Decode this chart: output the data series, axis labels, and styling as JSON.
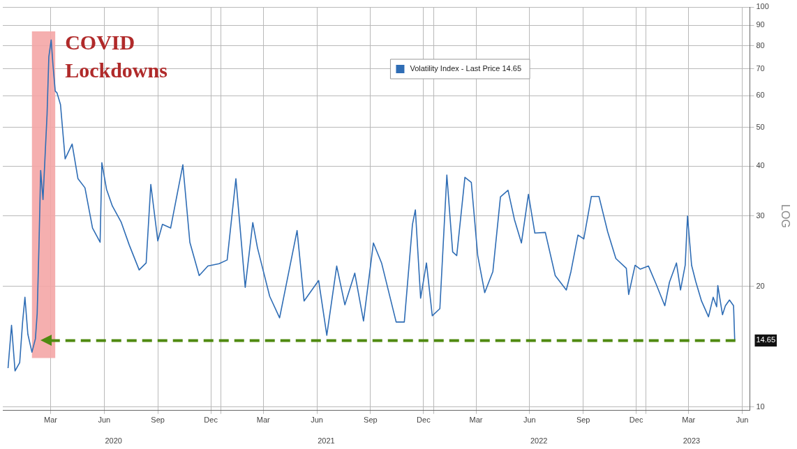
{
  "chart_data": {
    "type": "line",
    "legend": "top",
    "grid": true,
    "log": "y",
    "marker": "none",
    "line_style": "solid",
    "x": [
      "2020-01-02",
      "2020-01-08",
      "2020-01-14",
      "2020-01-22",
      "2020-01-27",
      "2020-01-31",
      "2020-02-05",
      "2020-02-12",
      "2020-02-18",
      "2020-02-21",
      "2020-02-24",
      "2020-02-27",
      "2020-03-02",
      "2020-03-09",
      "2020-03-12",
      "2020-03-16",
      "2020-03-19",
      "2020-03-23",
      "2020-03-26",
      "2020-04-01",
      "2020-04-09",
      "2020-04-21",
      "2020-05-01",
      "2020-05-13",
      "2020-05-26",
      "2020-06-08",
      "2020-06-11",
      "2020-06-19",
      "2020-06-29",
      "2020-07-14",
      "2020-07-28",
      "2020-08-14",
      "2020-08-26",
      "2020-09-03",
      "2020-09-15",
      "2020-09-23",
      "2020-10-07",
      "2020-10-28",
      "2020-11-09",
      "2020-11-25",
      "2020-12-10",
      "2020-12-29",
      "2021-01-12",
      "2021-01-27",
      "2021-02-12",
      "2021-02-25",
      "2021-03-05",
      "2021-03-26",
      "2021-04-12",
      "2021-05-12",
      "2021-05-24",
      "2021-06-18",
      "2021-07-02",
      "2021-07-19",
      "2021-08-02",
      "2021-08-19",
      "2021-09-03",
      "2021-09-20",
      "2021-10-04",
      "2021-10-29",
      "2021-11-12",
      "2021-11-26",
      "2021-12-01",
      "2021-12-10",
      "2021-12-20",
      "2021-12-30",
      "2022-01-12",
      "2022-01-24",
      "2022-02-03",
      "2022-02-10",
      "2022-02-24",
      "2022-03-07",
      "2022-03-18",
      "2022-03-30",
      "2022-04-13",
      "2022-04-26",
      "2022-05-09",
      "2022-05-20",
      "2022-06-01",
      "2022-06-13",
      "2022-06-24",
      "2022-07-12",
      "2022-07-29",
      "2022-08-17",
      "2022-08-25",
      "2022-09-06",
      "2022-09-16",
      "2022-09-29",
      "2022-10-12",
      "2022-10-27",
      "2022-11-10",
      "2022-11-28",
      "2022-12-02",
      "2022-12-13",
      "2022-12-22",
      "2023-01-05",
      "2023-01-18",
      "2023-02-02",
      "2023-02-10",
      "2023-02-22",
      "2023-03-01",
      "2023-03-09",
      "2023-03-13",
      "2023-03-20",
      "2023-03-27",
      "2023-04-06",
      "2023-04-18",
      "2023-04-26",
      "2023-05-02",
      "2023-05-04",
      "2023-05-12",
      "2023-05-17",
      "2023-05-24",
      "2023-05-31",
      "2023-06-02"
    ],
    "series": [
      {
        "name": "Volatility Index - Last Price 14.65",
        "color": "#2f6db5",
        "values": [
          12.5,
          16,
          12.3,
          12.9,
          16.3,
          18.8,
          15.2,
          13.7,
          14.8,
          17.1,
          25,
          39,
          33,
          54,
          75,
          82.7,
          72,
          61.6,
          61,
          57,
          41.7,
          45.4,
          37.2,
          35.3,
          28,
          25.8,
          40.8,
          35,
          31.8,
          29,
          25.4,
          22,
          22.9,
          36,
          26,
          28.6,
          28,
          40.3,
          25.8,
          21.3,
          22.5,
          22.8,
          23.3,
          37.2,
          19.9,
          28.9,
          25,
          18.9,
          16.7,
          27.6,
          18.4,
          20.7,
          15.1,
          22.5,
          18,
          21.6,
          16.4,
          25.7,
          22.9,
          16.3,
          16.3,
          28.6,
          31.1,
          18.7,
          22.9,
          16.9,
          17.6,
          38,
          24.4,
          23.9,
          37.5,
          36.4,
          23.9,
          19.3,
          21.8,
          33.5,
          34.8,
          29.4,
          25.7,
          34,
          27.2,
          27.3,
          21.3,
          19.6,
          21.8,
          26.9,
          26.3,
          33.6,
          33.6,
          27.4,
          23.5,
          22.2,
          19.1,
          22.6,
          22.1,
          22.5,
          20.3,
          17.9,
          20.5,
          22.9,
          19.6,
          22.6,
          30,
          22.6,
          20.6,
          18.4,
          16.8,
          18.8,
          17.8,
          20.1,
          17,
          17.9,
          18.5,
          17.9,
          14.65
        ]
      }
    ],
    "xlim": [
      "2019-12-24",
      "2023-06-28"
    ],
    "xticks": [
      {
        "value": "2020-03-15",
        "label": "Mar"
      },
      {
        "value": "2020-06-15",
        "label": "Jun"
      },
      {
        "value": "2020-09-15",
        "label": "Sep"
      },
      {
        "value": "2020-12-15",
        "label": "Dec"
      },
      {
        "value": "2021-01-01",
        "label": null
      },
      {
        "value": "2021-03-15",
        "label": "Mar"
      },
      {
        "value": "2021-06-15",
        "label": "Jun"
      },
      {
        "value": "2021-09-15",
        "label": "Sep"
      },
      {
        "value": "2021-12-15",
        "label": "Dec"
      },
      {
        "value": "2022-01-01",
        "label": null
      },
      {
        "value": "2022-03-15",
        "label": "Mar"
      },
      {
        "value": "2022-06-15",
        "label": "Jun"
      },
      {
        "value": "2022-09-15",
        "label": "Sep"
      },
      {
        "value": "2022-12-15",
        "label": "Dec"
      },
      {
        "value": "2023-01-01",
        "label": null
      },
      {
        "value": "2023-03-15",
        "label": "Mar"
      },
      {
        "value": "2023-06-15",
        "label": "Jun"
      }
    ],
    "x2lim": [
      "2019-12-24",
      "2023-06-28"
    ],
    "x2ticks": [
      {
        "value": "2020-07-01",
        "label": "2020"
      },
      {
        "value": "2021-07-01",
        "label": "2021"
      },
      {
        "value": "2022-07-01",
        "label": "2022"
      },
      {
        "value": "2023-03-20",
        "label": "2023"
      }
    ],
    "ylim": [
      9.8,
      100
    ],
    "yticks": [
      10,
      {
        "value": 14.65,
        "label": "14.65"
      },
      20,
      30,
      40,
      50,
      60,
      70,
      80,
      90,
      100
    ],
    "bands": [
      {
        "axis": "x",
        "from": "2020-02-12",
        "to": "2020-03-23",
        "label": "COVID Lockdowns",
        "color": "#f4a6a6"
      }
    ],
    "ref_lines": [
      {
        "axis": "y",
        "value": 14.65,
        "color": "#4f8a10",
        "line_style": "dashed"
      }
    ],
    "annotations": [
      "LOG"
    ]
  }
}
